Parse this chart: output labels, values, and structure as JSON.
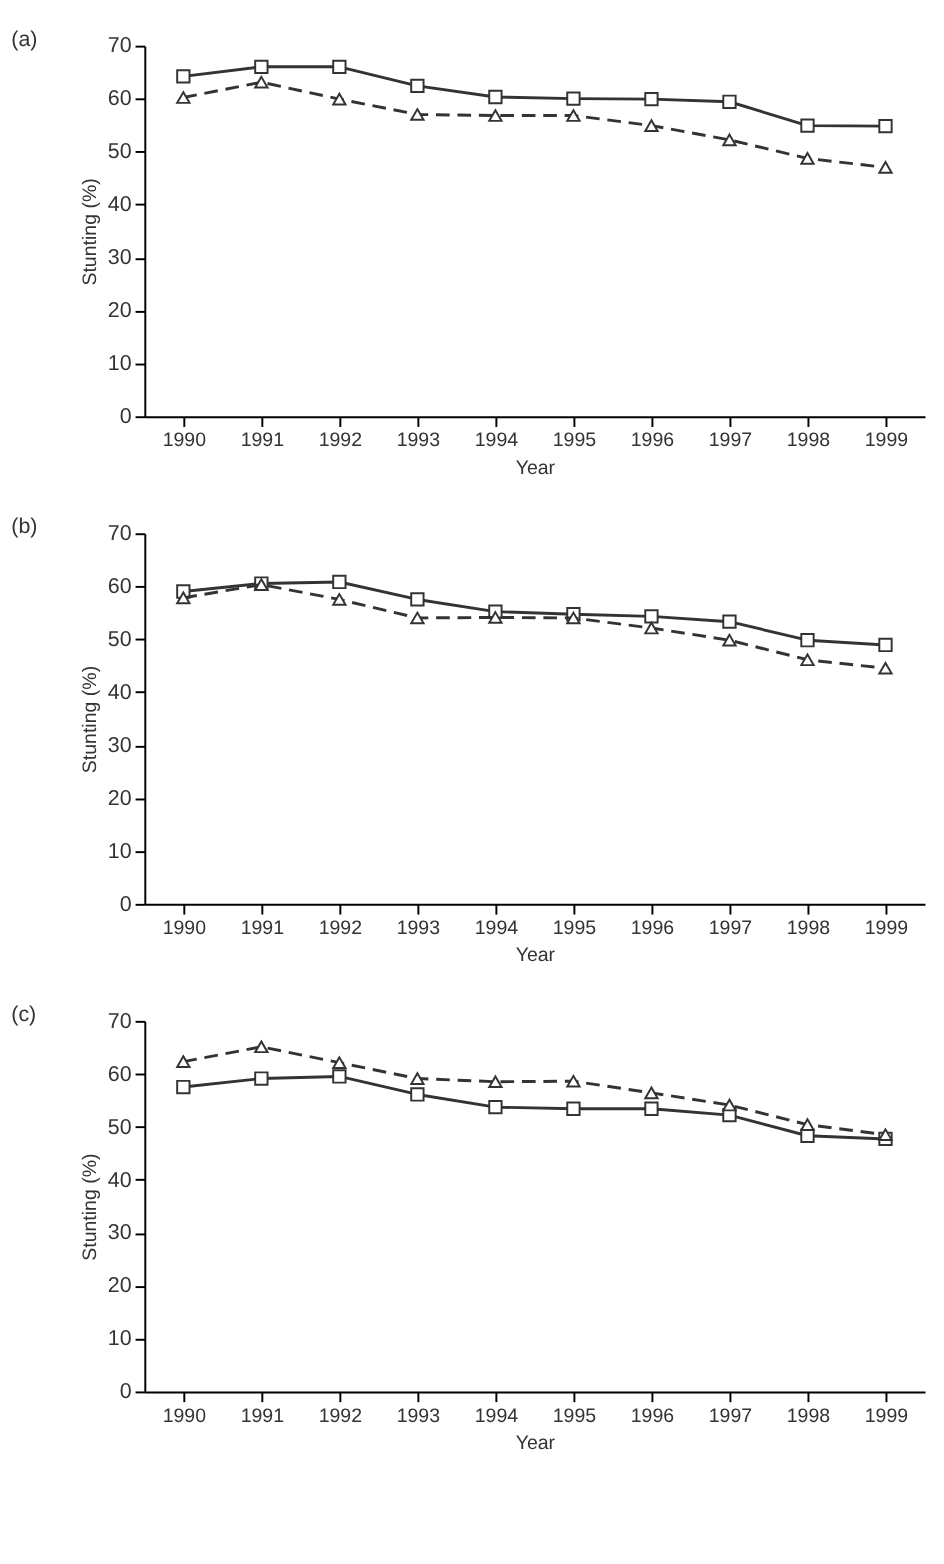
{
  "chart_data": [
    {
      "type": "line",
      "title": "(a)",
      "xlabel": "Year",
      "ylabel": "Stunting (%)",
      "categories": [
        "1990",
        "1991",
        "1992",
        "1993",
        "1994",
        "1995",
        "1996",
        "1997",
        "1998",
        "1999"
      ],
      "ylim": [
        0,
        70
      ],
      "yticks": [
        0,
        10,
        20,
        30,
        40,
        50,
        60,
        70
      ],
      "grid": false,
      "series": [
        {
          "color": "#333333",
          "marker": "square",
          "line_style": "solid",
          "values": [
            64.2,
            66,
            66,
            62.4,
            60.3,
            60,
            59.9,
            59.4,
            54.9,
            54.8
          ]
        },
        {
          "color": "#333333",
          "marker": "triangle",
          "line_style": "dashed",
          "values": [
            60.2,
            63.1,
            59.9,
            57,
            56.8,
            56.8,
            54.9,
            52.2,
            48.7,
            47
          ]
        }
      ]
    },
    {
      "type": "line",
      "title": "(b)",
      "xlabel": "Year",
      "ylabel": "Stunting (%)",
      "categories": [
        "1990",
        "1991",
        "1992",
        "1993",
        "1994",
        "1995",
        "1996",
        "1997",
        "1998",
        "1999"
      ],
      "ylim": [
        0,
        70
      ],
      "yticks": [
        0,
        10,
        20,
        30,
        40,
        50,
        60,
        70
      ],
      "grid": false,
      "series": [
        {
          "color": "#333333",
          "marker": "square",
          "line_style": "solid",
          "values": [
            59,
            60.5,
            60.8,
            57.5,
            55.2,
            54.7,
            54.3,
            53.3,
            49.8,
            48.9
          ]
        },
        {
          "color": "#333333",
          "marker": "triangle",
          "line_style": "dashed",
          "values": [
            57.8,
            60.3,
            57.5,
            54,
            54.1,
            54,
            52.1,
            49.8,
            46.1,
            44.5
          ]
        }
      ]
    },
    {
      "type": "line",
      "title": "(c)",
      "xlabel": "Year",
      "ylabel": "Stunting (%)",
      "categories": [
        "1990",
        "1991",
        "1992",
        "1993",
        "1994",
        "1995",
        "1996",
        "1997",
        "1998",
        "1999"
      ],
      "ylim": [
        0,
        70
      ],
      "yticks": [
        0,
        10,
        20,
        30,
        40,
        50,
        60,
        70
      ],
      "grid": false,
      "series": [
        {
          "color": "#333333",
          "marker": "square",
          "line_style": "solid",
          "values": [
            57.5,
            59.1,
            59.5,
            56.1,
            53.7,
            53.4,
            53.4,
            52.2,
            48.3,
            47.7
          ]
        },
        {
          "color": "#333333",
          "marker": "triangle",
          "line_style": "dashed",
          "values": [
            62.3,
            65.1,
            62.1,
            59.1,
            58.5,
            58.6,
            56.4,
            54.1,
            50.4,
            48.5
          ]
        }
      ]
    }
  ]
}
